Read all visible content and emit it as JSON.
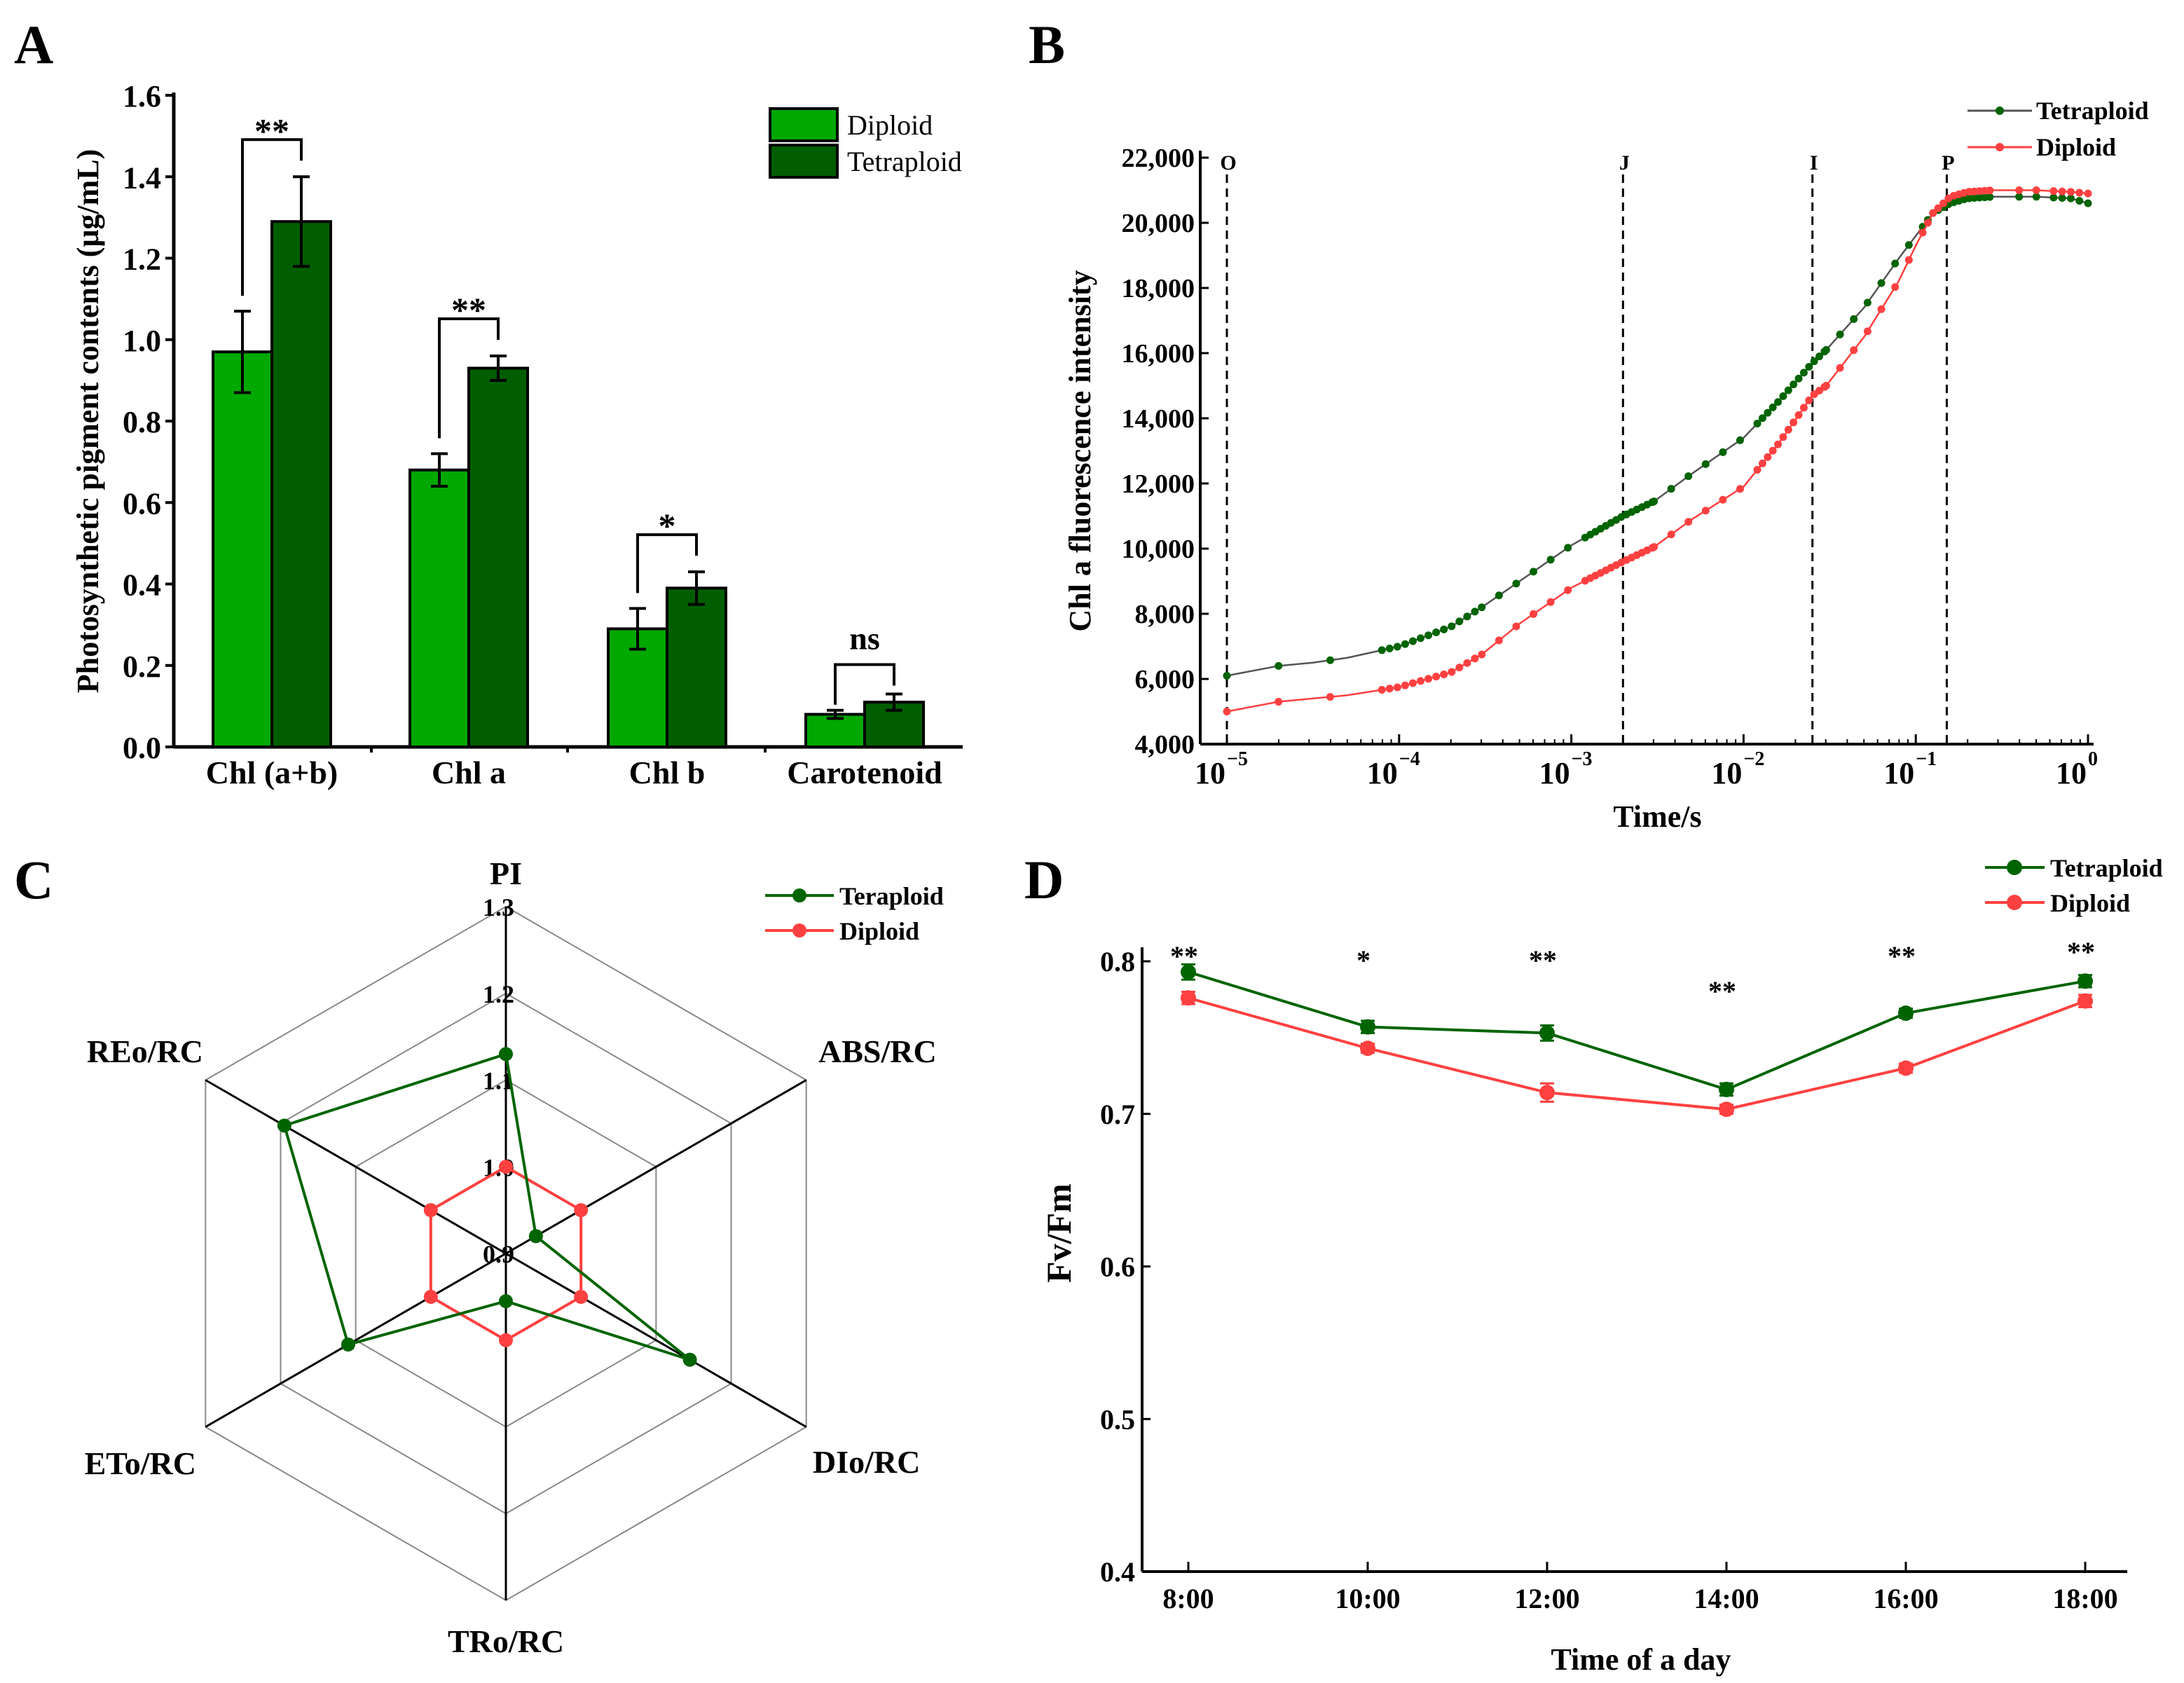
{
  "chart_data": [
    {
      "panel": "A",
      "type": "bar",
      "ylabel": "Photosynthetic pigment contents (μg/mL)",
      "ylim": [
        0,
        1.6
      ],
      "yticks": [
        "0.0",
        "0.2",
        "0.4",
        "0.6",
        "0.8",
        "1.0",
        "1.2",
        "1.4",
        "1.6"
      ],
      "categories": [
        "Chl (a+b)",
        "Chl a",
        "Chl b",
        "Carotenoid"
      ],
      "series": [
        {
          "name": "Diploid",
          "color": "#00a800",
          "values": [
            0.97,
            0.68,
            0.29,
            0.08
          ],
          "errors": [
            0.1,
            0.04,
            0.05,
            0.01
          ]
        },
        {
          "name": "Tetraploid",
          "color": "#005e00",
          "values": [
            1.29,
            0.93,
            0.39,
            0.11
          ],
          "errors": [
            0.11,
            0.03,
            0.04,
            0.02
          ]
        }
      ],
      "significance": [
        "**",
        "**",
        "*",
        "ns"
      ],
      "legend": "top-right"
    },
    {
      "panel": "B",
      "type": "line",
      "xlabel": "Time/s",
      "ylabel": "Chl a fluorescence intensity",
      "xscale": "log",
      "xlim_log10": [
        -5,
        0
      ],
      "xticks": [
        {
          "base": "10",
          "exp": "−5"
        },
        {
          "base": "10",
          "exp": "−4"
        },
        {
          "base": "10",
          "exp": "−3"
        },
        {
          "base": "10",
          "exp": "−2"
        },
        {
          "base": "10",
          "exp": "−1"
        },
        {
          "base": "10",
          "exp": "0"
        }
      ],
      "ylim": [
        4000,
        22000
      ],
      "yticks": [
        "4,000",
        "6,000",
        "8,000",
        "10,000",
        "12,000",
        "14,000",
        "16,000",
        "18,000",
        "20,000",
        "22,000"
      ],
      "phase_markers": [
        {
          "label": "O",
          "log10_t": -5
        },
        {
          "label": "J",
          "log10_t": -2.7
        },
        {
          "label": "I",
          "log10_t": -1.6
        },
        {
          "label": "P",
          "log10_t": -0.82
        }
      ],
      "series": [
        {
          "name": "Tetraploid",
          "color": "#006400",
          "line": "#555555",
          "log10_t": [
            -5,
            -4.7,
            -4.5,
            -4.3,
            -4,
            -3.7,
            -3.52,
            -3.3,
            -3,
            -2.7,
            -2.52,
            -2.3,
            -2,
            -1.8,
            -1.6,
            -1.52,
            -1.3,
            -1.1,
            -1,
            -0.9,
            -0.8,
            -0.7,
            -0.55,
            -0.3,
            -0.1,
            0
          ],
          "values": [
            6100,
            6400,
            6500,
            6650,
            7000,
            7600,
            8200,
            9000,
            10100,
            11000,
            11450,
            12300,
            13400,
            14500,
            15700,
            16100,
            17400,
            18900,
            19600,
            20300,
            20600,
            20750,
            20800,
            20800,
            20750,
            20600
          ]
        },
        {
          "name": "Diploid",
          "color": "#ff4040",
          "line": "#ff4040",
          "log10_t": [
            -5,
            -4.7,
            -4.5,
            -4.3,
            -4,
            -3.7,
            -3.52,
            -3.3,
            -3,
            -2.7,
            -2.52,
            -2.3,
            -2,
            -1.8,
            -1.6,
            -1.52,
            -1.3,
            -1.1,
            -1,
            -0.9,
            -0.8,
            -0.7,
            -0.55,
            -0.3,
            -0.1,
            0
          ],
          "values": [
            5000,
            5300,
            5400,
            5500,
            5750,
            6200,
            6750,
            7700,
            8800,
            9600,
            10050,
            10900,
            11900,
            13200,
            14700,
            15000,
            16500,
            18200,
            19300,
            20300,
            20800,
            20950,
            21000,
            21000,
            20950,
            20900
          ]
        }
      ],
      "legend": "top-right"
    },
    {
      "panel": "C",
      "type": "radar",
      "axes": [
        "PI",
        "ABS/RC",
        "DIo/RC",
        "TRo/RC",
        "ETo/RC",
        "REo/RC"
      ],
      "rlim": [
        0.9,
        1.3
      ],
      "rticks": [
        "0.9",
        "1.0",
        "1.1",
        "1.2",
        "1.3"
      ],
      "series": [
        {
          "name": "Teraploid",
          "color": "#006400",
          "values": [
            1.13,
            0.94,
            1.145,
            0.955,
            1.11,
            1.195
          ]
        },
        {
          "name": "Diploid",
          "color": "#ff4040",
          "values": [
            1.0,
            1.0,
            1.0,
            1.0,
            1.0,
            1.0
          ]
        }
      ],
      "legend": "top-right"
    },
    {
      "panel": "D",
      "type": "line",
      "xlabel": "Time of a day",
      "ylabel": "Fv/Fm",
      "categories": [
        "8:00",
        "10:00",
        "12:00",
        "14:00",
        "16:00",
        "18:00"
      ],
      "ylim": [
        0.4,
        0.8
      ],
      "yticks": [
        "0.4",
        "0.5",
        "0.6",
        "0.7",
        "0.8"
      ],
      "series": [
        {
          "name": "Tetraploid",
          "color": "#006400",
          "values": [
            0.793,
            0.757,
            0.753,
            0.716,
            0.766,
            0.787
          ],
          "errors": [
            0.005,
            0.004,
            0.005,
            0.004,
            0.003,
            0.004
          ]
        },
        {
          "name": "Diploid",
          "color": "#ff4040",
          "values": [
            0.776,
            0.743,
            0.714,
            0.703,
            0.73,
            0.774
          ],
          "errors": [
            0.004,
            0.003,
            0.006,
            0.003,
            0.003,
            0.004
          ]
        }
      ],
      "significance": [
        "**",
        "*",
        "**",
        "**",
        "**",
        "**"
      ],
      "legend": "top-right"
    }
  ]
}
